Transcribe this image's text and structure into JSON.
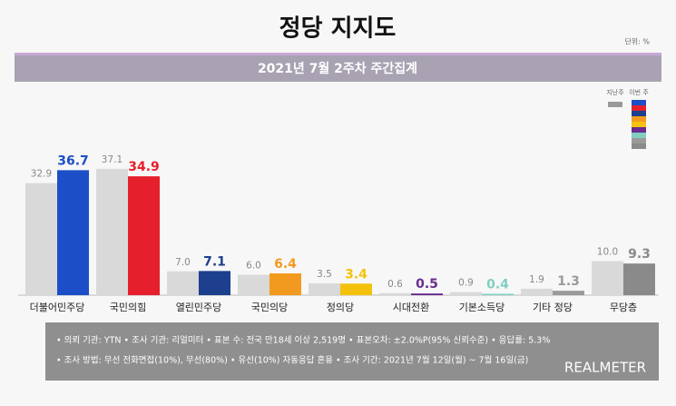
{
  "chart_data": {
    "type": "bar",
    "title": "정당 지지도",
    "unit": "단위: %",
    "subtitle": "2021년 7월 2주차 주간집계",
    "categories": [
      "더불어민주당",
      "국민의힘",
      "열린민주당",
      "국민의당",
      "정의당",
      "시대전환",
      "기본소득당",
      "기타 정당",
      "무당층"
    ],
    "series": [
      {
        "name": "지난주",
        "color": "#d9d9d9",
        "values": [
          32.9,
          37.1,
          7.0,
          6.0,
          3.5,
          0.6,
          0.9,
          1.9,
          10.0
        ],
        "value_labels": [
          "32.9",
          "37.1",
          "7.0",
          "6.0",
          "3.5",
          "0.6",
          "0.9",
          "1.9",
          "10.0"
        ]
      },
      {
        "name": "이번 주",
        "colors": [
          "#1c4fc7",
          "#e5202c",
          "#1d3f8e",
          "#f29a1f",
          "#f4c20d",
          "#6a2c90",
          "#7fcfc0",
          "#9a9a9a",
          "#8a8a8a"
        ],
        "values": [
          36.7,
          34.9,
          7.1,
          6.4,
          3.4,
          0.5,
          0.4,
          1.3,
          9.3
        ],
        "value_labels": [
          "36.7",
          "34.9",
          "7.1",
          "6.4",
          "3.4",
          "0.5",
          "0.4",
          "1.3",
          "9.3"
        ]
      }
    ],
    "ylim": [
      0,
      40
    ],
    "notes": [
      "• 의뢰 기관: YTN • 조사 기관: 리얼미터 • 표본 수: 전국 만18세 이상 2,519명 • 표본오차: ±2.0%P(95% 신뢰수준) • 응답률: 5.3%",
      "• 조사 방법: 무선 전화면접(10%), 무선(80%) • 유선(10%) 자동응답 혼용 • 조사 기간: 2021년 7월 12일(월) ~ 7월 16일(금)"
    ],
    "brand": "REALMETER"
  }
}
